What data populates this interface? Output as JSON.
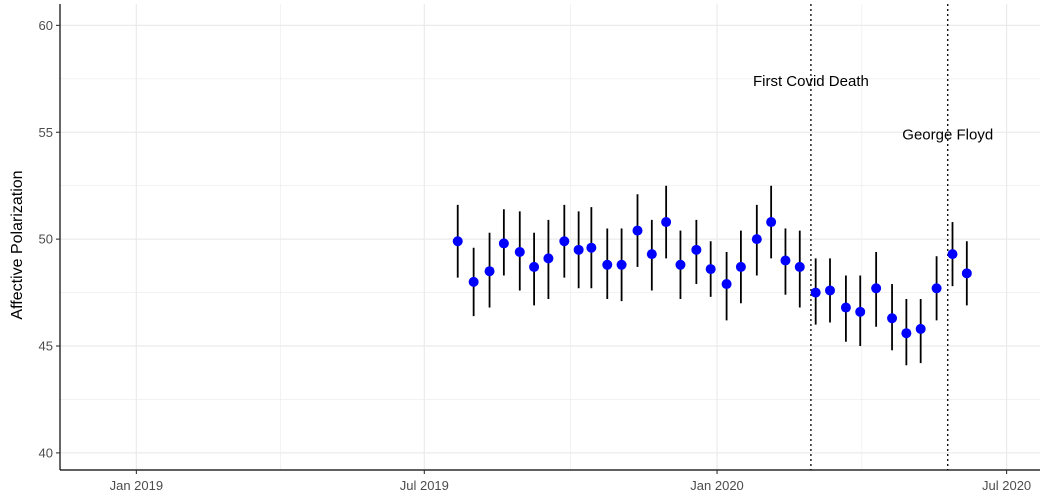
{
  "chart_data": {
    "type": "scatter",
    "title": "",
    "xlabel": "",
    "ylabel": "Affective Polarization",
    "x_axis_type": "date",
    "xlim": [
      "2018-11-14",
      "2020-07-22"
    ],
    "ylim": [
      39.2,
      61.0
    ],
    "x_ticks": [
      {
        "date": "2019-01-01",
        "label": "Jan 2019"
      },
      {
        "date": "2019-07-01",
        "label": "Jul 2019"
      },
      {
        "date": "2020-01-01",
        "label": "Jan 2020"
      },
      {
        "date": "2020-07-01",
        "label": "Jul 2020"
      }
    ],
    "y_ticks": [
      40,
      45,
      50,
      55,
      60
    ],
    "grid": true,
    "legend": "none",
    "colors": {
      "point": "#0000ff",
      "errorbar": "#000000",
      "grid": "#ebebeb",
      "vline": "#000000"
    },
    "series": [
      {
        "points": [
          {
            "x": "2019-07-22",
            "y": 49.9,
            "lo": 48.2,
            "hi": 51.6
          },
          {
            "x": "2019-08-01",
            "y": 48.0,
            "lo": 46.4,
            "hi": 49.6
          },
          {
            "x": "2019-08-11",
            "y": 48.5,
            "lo": 46.8,
            "hi": 50.3
          },
          {
            "x": "2019-08-20",
            "y": 49.8,
            "lo": 48.3,
            "hi": 51.4
          },
          {
            "x": "2019-08-30",
            "y": 49.4,
            "lo": 47.6,
            "hi": 51.3
          },
          {
            "x": "2019-09-08",
            "y": 48.7,
            "lo": 46.9,
            "hi": 50.3
          },
          {
            "x": "2019-09-17",
            "y": 49.1,
            "lo": 47.2,
            "hi": 50.9
          },
          {
            "x": "2019-09-27",
            "y": 49.9,
            "lo": 48.2,
            "hi": 51.6
          },
          {
            "x": "2019-10-06",
            "y": 49.5,
            "lo": 47.7,
            "hi": 51.3
          },
          {
            "x": "2019-10-14",
            "y": 49.6,
            "lo": 47.7,
            "hi": 51.5
          },
          {
            "x": "2019-10-24",
            "y": 48.8,
            "lo": 47.2,
            "hi": 50.5
          },
          {
            "x": "2019-11-02",
            "y": 48.8,
            "lo": 47.1,
            "hi": 50.5
          },
          {
            "x": "2019-11-12",
            "y": 50.4,
            "lo": 48.7,
            "hi": 52.1
          },
          {
            "x": "2019-11-21",
            "y": 49.3,
            "lo": 47.6,
            "hi": 50.9
          },
          {
            "x": "2019-11-30",
            "y": 50.8,
            "lo": 49.1,
            "hi": 52.5
          },
          {
            "x": "2019-12-09",
            "y": 48.8,
            "lo": 47.2,
            "hi": 50.4
          },
          {
            "x": "2019-12-19",
            "y": 49.5,
            "lo": 47.9,
            "hi": 50.9
          },
          {
            "x": "2019-12-28",
            "y": 48.6,
            "lo": 47.3,
            "hi": 49.9
          },
          {
            "x": "2020-01-07",
            "y": 47.9,
            "lo": 46.2,
            "hi": 49.4
          },
          {
            "x": "2020-01-16",
            "y": 48.7,
            "lo": 47.0,
            "hi": 50.4
          },
          {
            "x": "2020-01-26",
            "y": 50.0,
            "lo": 48.3,
            "hi": 51.6
          },
          {
            "x": "2020-02-04",
            "y": 50.8,
            "lo": 49.1,
            "hi": 52.5
          },
          {
            "x": "2020-02-13",
            "y": 49.0,
            "lo": 47.4,
            "hi": 50.5
          },
          {
            "x": "2020-02-22",
            "y": 48.7,
            "lo": 46.8,
            "hi": 50.4
          },
          {
            "x": "2020-03-03",
            "y": 47.5,
            "lo": 46.0,
            "hi": 49.1
          },
          {
            "x": "2020-03-12",
            "y": 47.6,
            "lo": 46.1,
            "hi": 49.1
          },
          {
            "x": "2020-03-22",
            "y": 46.8,
            "lo": 45.2,
            "hi": 48.3
          },
          {
            "x": "2020-03-31",
            "y": 46.6,
            "lo": 45.0,
            "hi": 48.3
          },
          {
            "x": "2020-04-10",
            "y": 47.7,
            "lo": 45.9,
            "hi": 49.4
          },
          {
            "x": "2020-04-20",
            "y": 46.3,
            "lo": 44.8,
            "hi": 47.9
          },
          {
            "x": "2020-04-29",
            "y": 45.6,
            "lo": 44.1,
            "hi": 47.2
          },
          {
            "x": "2020-05-08",
            "y": 45.8,
            "lo": 44.2,
            "hi": 47.2
          },
          {
            "x": "2020-05-18",
            "y": 47.7,
            "lo": 46.2,
            "hi": 49.2
          },
          {
            "x": "2020-05-28",
            "y": 49.3,
            "lo": 47.8,
            "hi": 50.8
          },
          {
            "x": "2020-06-06",
            "y": 48.4,
            "lo": 46.9,
            "hi": 49.9
          }
        ]
      }
    ],
    "annotations": [
      {
        "label": "First Covid Death",
        "x": "2020-02-29",
        "y": 57.4,
        "line": "dotted"
      },
      {
        "label": "George Floyd",
        "x": "2020-05-25",
        "y": 54.9,
        "line": "dotted"
      }
    ]
  }
}
